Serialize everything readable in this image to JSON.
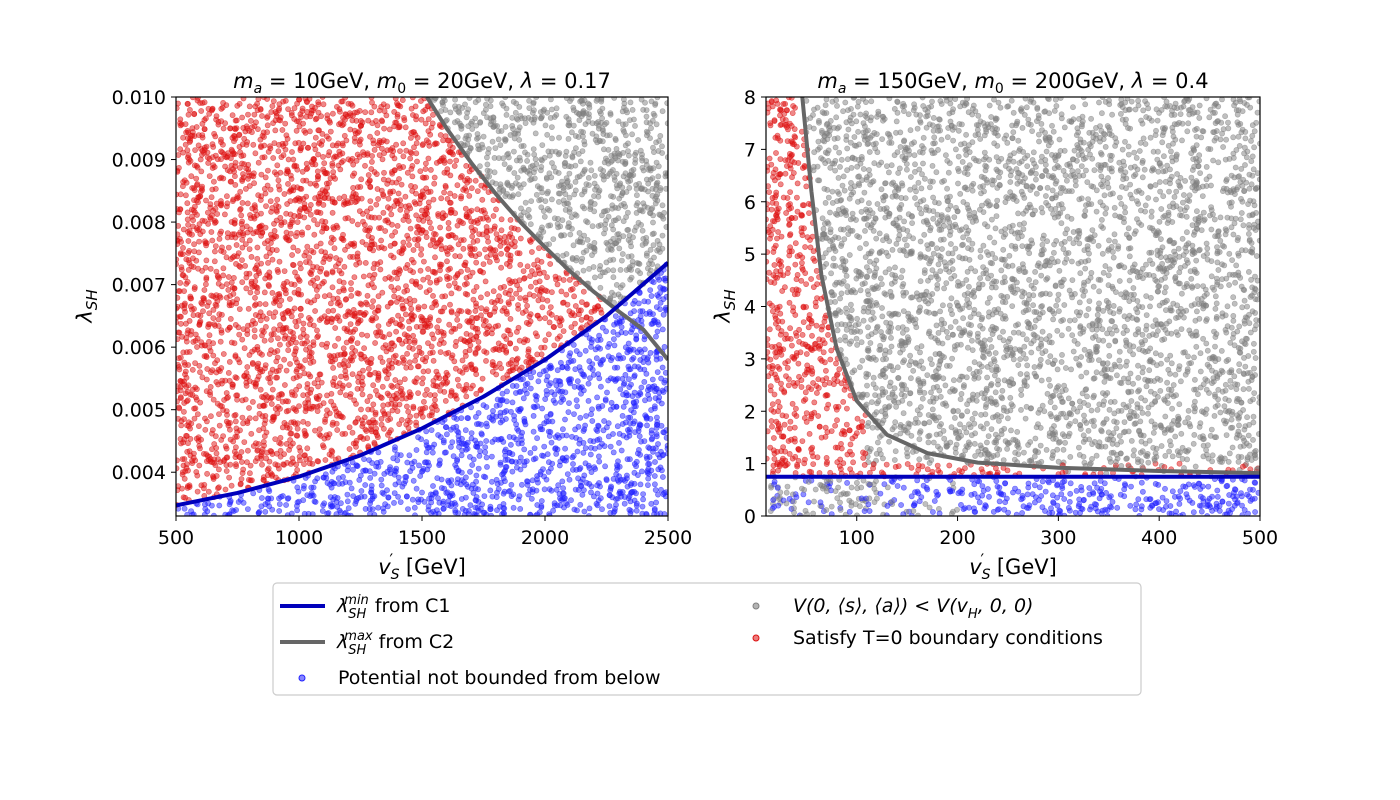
{
  "chart_data": [
    {
      "type": "scatter",
      "title": "m_a = 10GeV, m_0 = 20GeV, λ = 0.17",
      "title_parts": {
        "ma": "m",
        "ma_sub": "a",
        "ma_val": " = 10GeV, ",
        "m0": "m",
        "m0_sub": "0",
        "m0_val": " = 20GeV, ",
        "lam": "λ",
        "lam_val": " = 0.17"
      },
      "xlabel": "v'_S [GeV]",
      "ylabel": "λ_SH",
      "xlim": [
        500,
        2500
      ],
      "ylim": [
        0.0033,
        0.01
      ],
      "xticks": [
        "500",
        "1000",
        "1500",
        "2000",
        "2500"
      ],
      "xtick_values": [
        500,
        1000,
        1500,
        2000,
        2500
      ],
      "yticks": [
        "0.004",
        "0.005",
        "0.006",
        "0.007",
        "0.008",
        "0.009",
        "0.010"
      ],
      "ytick_values": [
        0.004,
        0.005,
        0.006,
        0.007,
        0.008,
        0.009,
        0.01
      ],
      "curves": {
        "min": {
          "name": "λ_SH^min from C1",
          "x": [
            500,
            750,
            1000,
            1250,
            1500,
            1750,
            2000,
            2250,
            2500
          ],
          "y": [
            0.00347,
            0.00367,
            0.00393,
            0.00427,
            0.0047,
            0.00521,
            0.0058,
            0.0065,
            0.00735
          ]
        },
        "max": {
          "name": "λ_SH^max from C2",
          "x": [
            1520,
            1600,
            1700,
            1800,
            1900,
            2000,
            2100,
            2200,
            2300,
            2400,
            2500
          ],
          "y": [
            0.01,
            0.0095,
            0.00895,
            0.00845,
            0.008,
            0.0076,
            0.00722,
            0.00688,
            0.00657,
            0.00628,
            0.0058
          ]
        }
      },
      "regions": "blue below min curve, grey above max curve and boundary, red between"
    },
    {
      "type": "scatter",
      "title": "m_a = 150GeV, m_0 = 200GeV, λ = 0.4",
      "title_parts": {
        "ma": "m",
        "ma_sub": "a",
        "ma_val": " = 150GeV, ",
        "m0": "m",
        "m0_sub": "0",
        "m0_val": " = 200GeV, ",
        "lam": "λ",
        "lam_val": " = 0.4"
      },
      "xlabel": "v'_S [GeV]",
      "ylabel": "λ_SH",
      "xlim": [
        10,
        500
      ],
      "ylim": [
        0,
        8
      ],
      "xticks": [
        "100",
        "200",
        "300",
        "400",
        "500"
      ],
      "xtick_values": [
        100,
        200,
        300,
        400,
        500
      ],
      "yticks": [
        "0",
        "1",
        "2",
        "3",
        "4",
        "5",
        "6",
        "7",
        "8"
      ],
      "ytick_values": [
        0,
        1,
        2,
        3,
        4,
        5,
        6,
        7,
        8
      ],
      "curves": {
        "min": {
          "name": "λ_SH^min from C1",
          "x": [
            10,
            500
          ],
          "y": [
            0.75,
            0.75
          ]
        },
        "max": {
          "name": "λ_SH^max from C2",
          "x": [
            46,
            55,
            65,
            80,
            100,
            130,
            170,
            220,
            300,
            400,
            500
          ],
          "y": [
            8.0,
            6.2,
            4.6,
            3.2,
            2.2,
            1.55,
            1.2,
            1.02,
            0.92,
            0.86,
            0.82
          ]
        }
      }
    }
  ],
  "colors": {
    "blue_line": "#0000bb",
    "grey_line": "#666666",
    "blue_pts": "#2222ff",
    "grey_pts": "#808080",
    "red_pts": "#dd1111"
  },
  "legend": {
    "min_curve_sym": "λ",
    "min_curve_sub": "SH",
    "min_curve_sup": "min",
    "min_curve_rest": " from C1",
    "max_curve_sym": "λ",
    "max_curve_sub": "SH",
    "max_curve_sup": "max",
    "max_curve_rest": " from C2",
    "unbounded": "Potential not bounded from below",
    "grey_label": "V(0, ⟨s⟩, ⟨a⟩) < V(v_H, 0, 0)",
    "grey_a": "V(0, ⟨s⟩, ⟨a⟩) < V(v",
    "grey_sub": "H",
    "grey_b": ", 0, 0)",
    "red_label": "Satisfy T=0 boundary conditions"
  },
  "axis_text": {
    "v": "v",
    "v_sub": "S",
    "v_prime": "′",
    "unit": " [GeV]",
    "lam": "λ",
    "lam_sub": "SH"
  }
}
